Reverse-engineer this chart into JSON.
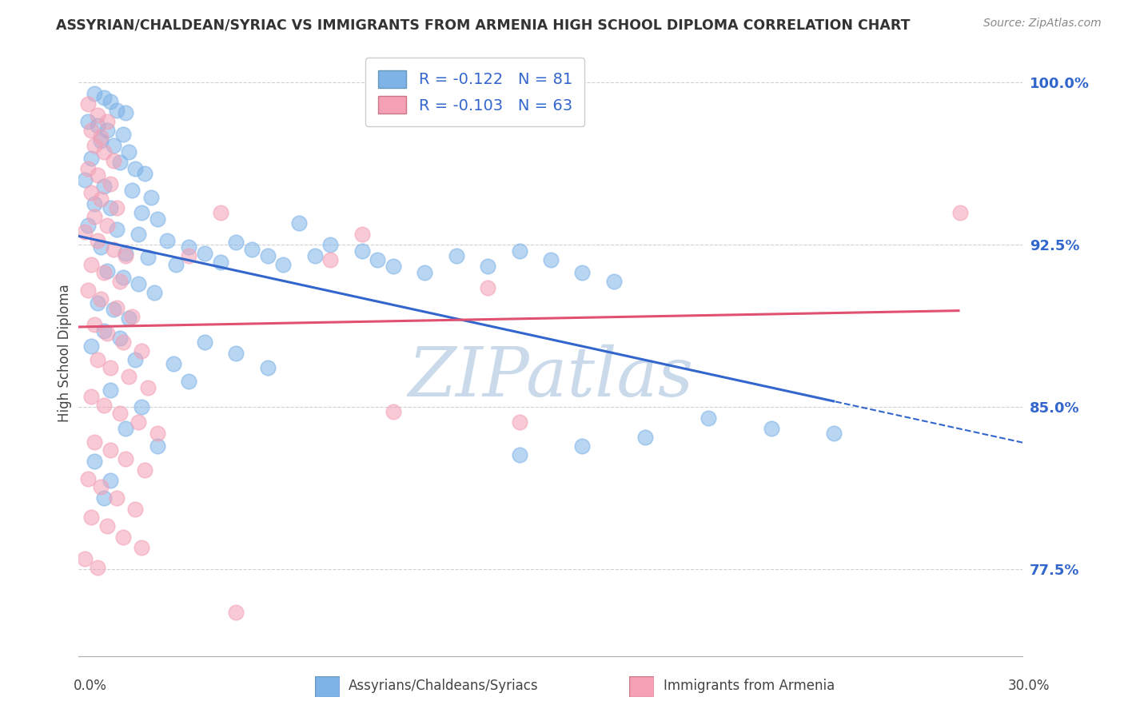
{
  "title": "ASSYRIAN/CHALDEAN/SYRIAC VS IMMIGRANTS FROM ARMENIA HIGH SCHOOL DIPLOMA CORRELATION CHART",
  "source": "Source: ZipAtlas.com",
  "ylabel": "High School Diploma",
  "xlim": [
    0.0,
    0.3
  ],
  "ylim": [
    0.735,
    1.015
  ],
  "ytick_positions": [
    0.775,
    0.85,
    0.925,
    1.0
  ],
  "ytick_labels": [
    "77.5%",
    "85.0%",
    "92.5%",
    "100.0%"
  ],
  "blue_color": "#7EB3E8",
  "pink_color": "#F4A0B5",
  "blue_line_color": "#3366CC",
  "pink_line_color": "#E05070",
  "blue_R": "-0.122",
  "blue_N": "81",
  "pink_R": "-0.103",
  "pink_N": "63",
  "watermark": "ZIPatlas",
  "watermark_color": "#CADAEA",
  "background_color": "#ffffff",
  "grid_color": "#d0d0d0",
  "blue_scatter": [
    [
      0.005,
      0.995
    ],
    [
      0.008,
      0.993
    ],
    [
      0.01,
      0.991
    ],
    [
      0.012,
      0.987
    ],
    [
      0.015,
      0.986
    ],
    [
      0.003,
      0.982
    ],
    [
      0.006,
      0.98
    ],
    [
      0.009,
      0.978
    ],
    [
      0.014,
      0.976
    ],
    [
      0.007,
      0.973
    ],
    [
      0.011,
      0.971
    ],
    [
      0.016,
      0.968
    ],
    [
      0.004,
      0.965
    ],
    [
      0.013,
      0.963
    ],
    [
      0.018,
      0.96
    ],
    [
      0.021,
      0.958
    ],
    [
      0.002,
      0.955
    ],
    [
      0.008,
      0.952
    ],
    [
      0.017,
      0.95
    ],
    [
      0.023,
      0.947
    ],
    [
      0.005,
      0.944
    ],
    [
      0.01,
      0.942
    ],
    [
      0.02,
      0.94
    ],
    [
      0.025,
      0.937
    ],
    [
      0.003,
      0.934
    ],
    [
      0.012,
      0.932
    ],
    [
      0.019,
      0.93
    ],
    [
      0.028,
      0.927
    ],
    [
      0.007,
      0.924
    ],
    [
      0.015,
      0.921
    ],
    [
      0.022,
      0.919
    ],
    [
      0.031,
      0.916
    ],
    [
      0.035,
      0.924
    ],
    [
      0.04,
      0.921
    ],
    [
      0.045,
      0.917
    ],
    [
      0.05,
      0.926
    ],
    [
      0.055,
      0.923
    ],
    [
      0.06,
      0.92
    ],
    [
      0.065,
      0.916
    ],
    [
      0.07,
      0.935
    ],
    [
      0.075,
      0.92
    ],
    [
      0.08,
      0.925
    ],
    [
      0.09,
      0.922
    ],
    [
      0.095,
      0.918
    ],
    [
      0.1,
      0.915
    ],
    [
      0.11,
      0.912
    ],
    [
      0.12,
      0.92
    ],
    [
      0.13,
      0.915
    ],
    [
      0.14,
      0.922
    ],
    [
      0.15,
      0.918
    ],
    [
      0.16,
      0.912
    ],
    [
      0.17,
      0.908
    ],
    [
      0.009,
      0.913
    ],
    [
      0.014,
      0.91
    ],
    [
      0.019,
      0.907
    ],
    [
      0.024,
      0.903
    ],
    [
      0.006,
      0.898
    ],
    [
      0.011,
      0.895
    ],
    [
      0.016,
      0.891
    ],
    [
      0.008,
      0.885
    ],
    [
      0.013,
      0.882
    ],
    [
      0.004,
      0.878
    ],
    [
      0.018,
      0.872
    ],
    [
      0.03,
      0.87
    ],
    [
      0.04,
      0.88
    ],
    [
      0.05,
      0.875
    ],
    [
      0.06,
      0.868
    ],
    [
      0.035,
      0.862
    ],
    [
      0.01,
      0.858
    ],
    [
      0.02,
      0.85
    ],
    [
      0.015,
      0.84
    ],
    [
      0.025,
      0.832
    ],
    [
      0.005,
      0.825
    ],
    [
      0.01,
      0.816
    ],
    [
      0.008,
      0.808
    ],
    [
      0.2,
      0.845
    ],
    [
      0.22,
      0.84
    ],
    [
      0.24,
      0.838
    ],
    [
      0.18,
      0.836
    ],
    [
      0.16,
      0.832
    ],
    [
      0.14,
      0.828
    ]
  ],
  "pink_scatter": [
    [
      0.003,
      0.99
    ],
    [
      0.006,
      0.985
    ],
    [
      0.009,
      0.982
    ],
    [
      0.004,
      0.978
    ],
    [
      0.007,
      0.975
    ],
    [
      0.005,
      0.971
    ],
    [
      0.008,
      0.968
    ],
    [
      0.011,
      0.964
    ],
    [
      0.003,
      0.96
    ],
    [
      0.006,
      0.957
    ],
    [
      0.01,
      0.953
    ],
    [
      0.004,
      0.949
    ],
    [
      0.007,
      0.946
    ],
    [
      0.012,
      0.942
    ],
    [
      0.005,
      0.938
    ],
    [
      0.009,
      0.934
    ],
    [
      0.002,
      0.931
    ],
    [
      0.006,
      0.927
    ],
    [
      0.011,
      0.923
    ],
    [
      0.015,
      0.92
    ],
    [
      0.004,
      0.916
    ],
    [
      0.008,
      0.912
    ],
    [
      0.013,
      0.908
    ],
    [
      0.003,
      0.904
    ],
    [
      0.007,
      0.9
    ],
    [
      0.012,
      0.896
    ],
    [
      0.017,
      0.892
    ],
    [
      0.005,
      0.888
    ],
    [
      0.009,
      0.884
    ],
    [
      0.014,
      0.88
    ],
    [
      0.02,
      0.876
    ],
    [
      0.006,
      0.872
    ],
    [
      0.01,
      0.868
    ],
    [
      0.016,
      0.864
    ],
    [
      0.022,
      0.859
    ],
    [
      0.004,
      0.855
    ],
    [
      0.008,
      0.851
    ],
    [
      0.013,
      0.847
    ],
    [
      0.019,
      0.843
    ],
    [
      0.025,
      0.838
    ],
    [
      0.005,
      0.834
    ],
    [
      0.01,
      0.83
    ],
    [
      0.015,
      0.826
    ],
    [
      0.021,
      0.821
    ],
    [
      0.003,
      0.817
    ],
    [
      0.007,
      0.813
    ],
    [
      0.012,
      0.808
    ],
    [
      0.018,
      0.803
    ],
    [
      0.004,
      0.799
    ],
    [
      0.009,
      0.795
    ],
    [
      0.014,
      0.79
    ],
    [
      0.02,
      0.785
    ],
    [
      0.002,
      0.78
    ],
    [
      0.006,
      0.776
    ],
    [
      0.045,
      0.94
    ],
    [
      0.09,
      0.93
    ],
    [
      0.035,
      0.92
    ],
    [
      0.08,
      0.918
    ],
    [
      0.13,
      0.905
    ],
    [
      0.05,
      0.755
    ],
    [
      0.28,
      0.94
    ],
    [
      0.1,
      0.848
    ],
    [
      0.14,
      0.843
    ]
  ]
}
